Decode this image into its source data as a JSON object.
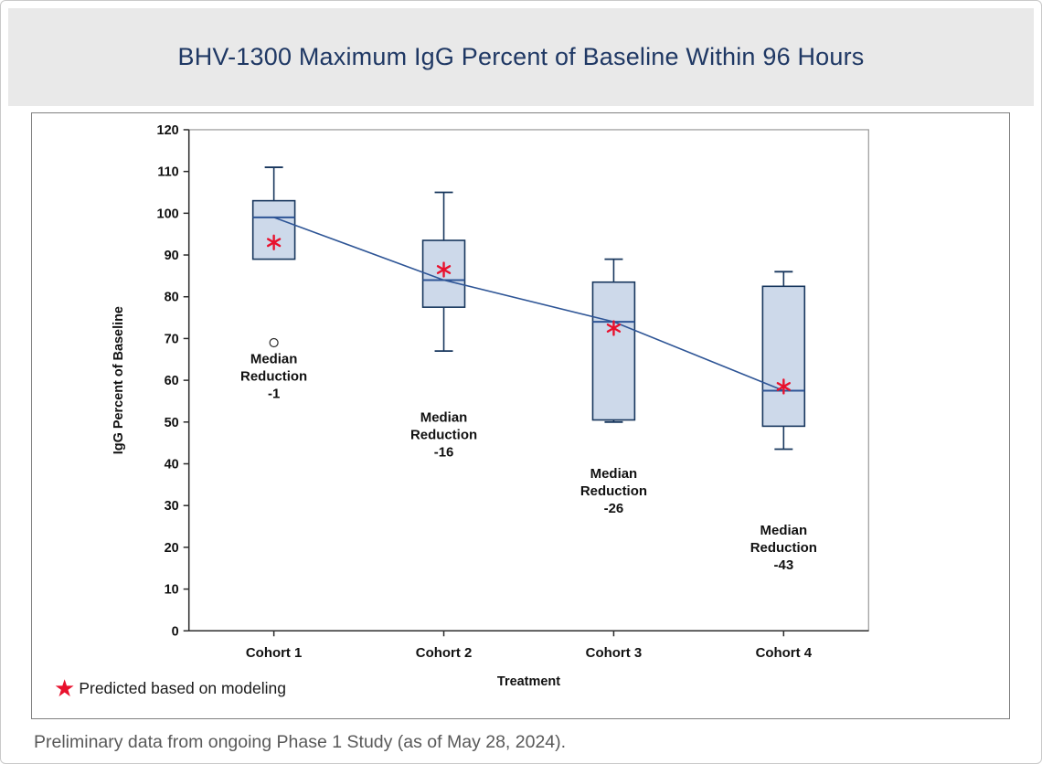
{
  "title": "BHV-1300 Maximum IgG Percent of Baseline Within 96 Hours",
  "legend": {
    "star_glyph": "★",
    "label": "Predicted based on modeling"
  },
  "footer": "Preliminary data from ongoing Phase 1 Study (as of May 28, 2024).",
  "colors": {
    "title_text": "#1F3864",
    "title_band_bg": "#E9E9E9",
    "box_fill": "#CDD9EA",
    "box_stroke": "#17365D",
    "trend_line": "#2E5596",
    "predicted_marker": "#E8112D",
    "axis_text": "#111111",
    "frame": "#999999",
    "footer_text": "#595959"
  },
  "chart_data": {
    "type": "boxplot",
    "title": "BHV-1300 Maximum IgG Percent of Baseline Within 96 Hours",
    "xlabel": "Treatment",
    "ylabel": "IgG Percent of Baseline",
    "ylim": [
      0,
      120
    ],
    "ytick_step": 10,
    "grid": false,
    "legend_position": "bottom-left",
    "legend_label": "Predicted based on modeling",
    "categories": [
      "Cohort 1",
      "Cohort 2",
      "Cohort 3",
      "Cohort 4"
    ],
    "boxes": [
      {
        "category": "Cohort 1",
        "whisker_high": 111,
        "q3": 103,
        "median": 99,
        "q1": 89,
        "whisker_low": 89,
        "outliers": [
          69
        ],
        "predicted": 93,
        "median_reduction": -1,
        "annotation_lines": [
          "Median",
          "Reduction",
          "-1"
        ],
        "annotation_y": 61
      },
      {
        "category": "Cohort 2",
        "whisker_high": 105,
        "q3": 93.5,
        "median": 84,
        "q1": 77.5,
        "whisker_low": 67,
        "outliers": [],
        "predicted": 86.5,
        "median_reduction": -16,
        "annotation_lines": [
          "Median",
          "Reduction",
          "-16"
        ],
        "annotation_y": 47
      },
      {
        "category": "Cohort 3",
        "whisker_high": 89,
        "q3": 83.5,
        "median": 74,
        "q1": 50.5,
        "whisker_low": 50,
        "outliers": [],
        "predicted": 72.5,
        "median_reduction": -26,
        "annotation_lines": [
          "Median",
          "Reduction",
          "-26"
        ],
        "annotation_y": 33.5
      },
      {
        "category": "Cohort 4",
        "whisker_high": 86,
        "q3": 82.5,
        "median": 57.5,
        "q1": 49,
        "whisker_low": 43.5,
        "outliers": [],
        "predicted": 58.5,
        "median_reduction": -43,
        "annotation_lines": [
          "Median",
          "Reduction",
          "-43"
        ],
        "annotation_y": 20
      }
    ],
    "median_trend_line": true
  }
}
